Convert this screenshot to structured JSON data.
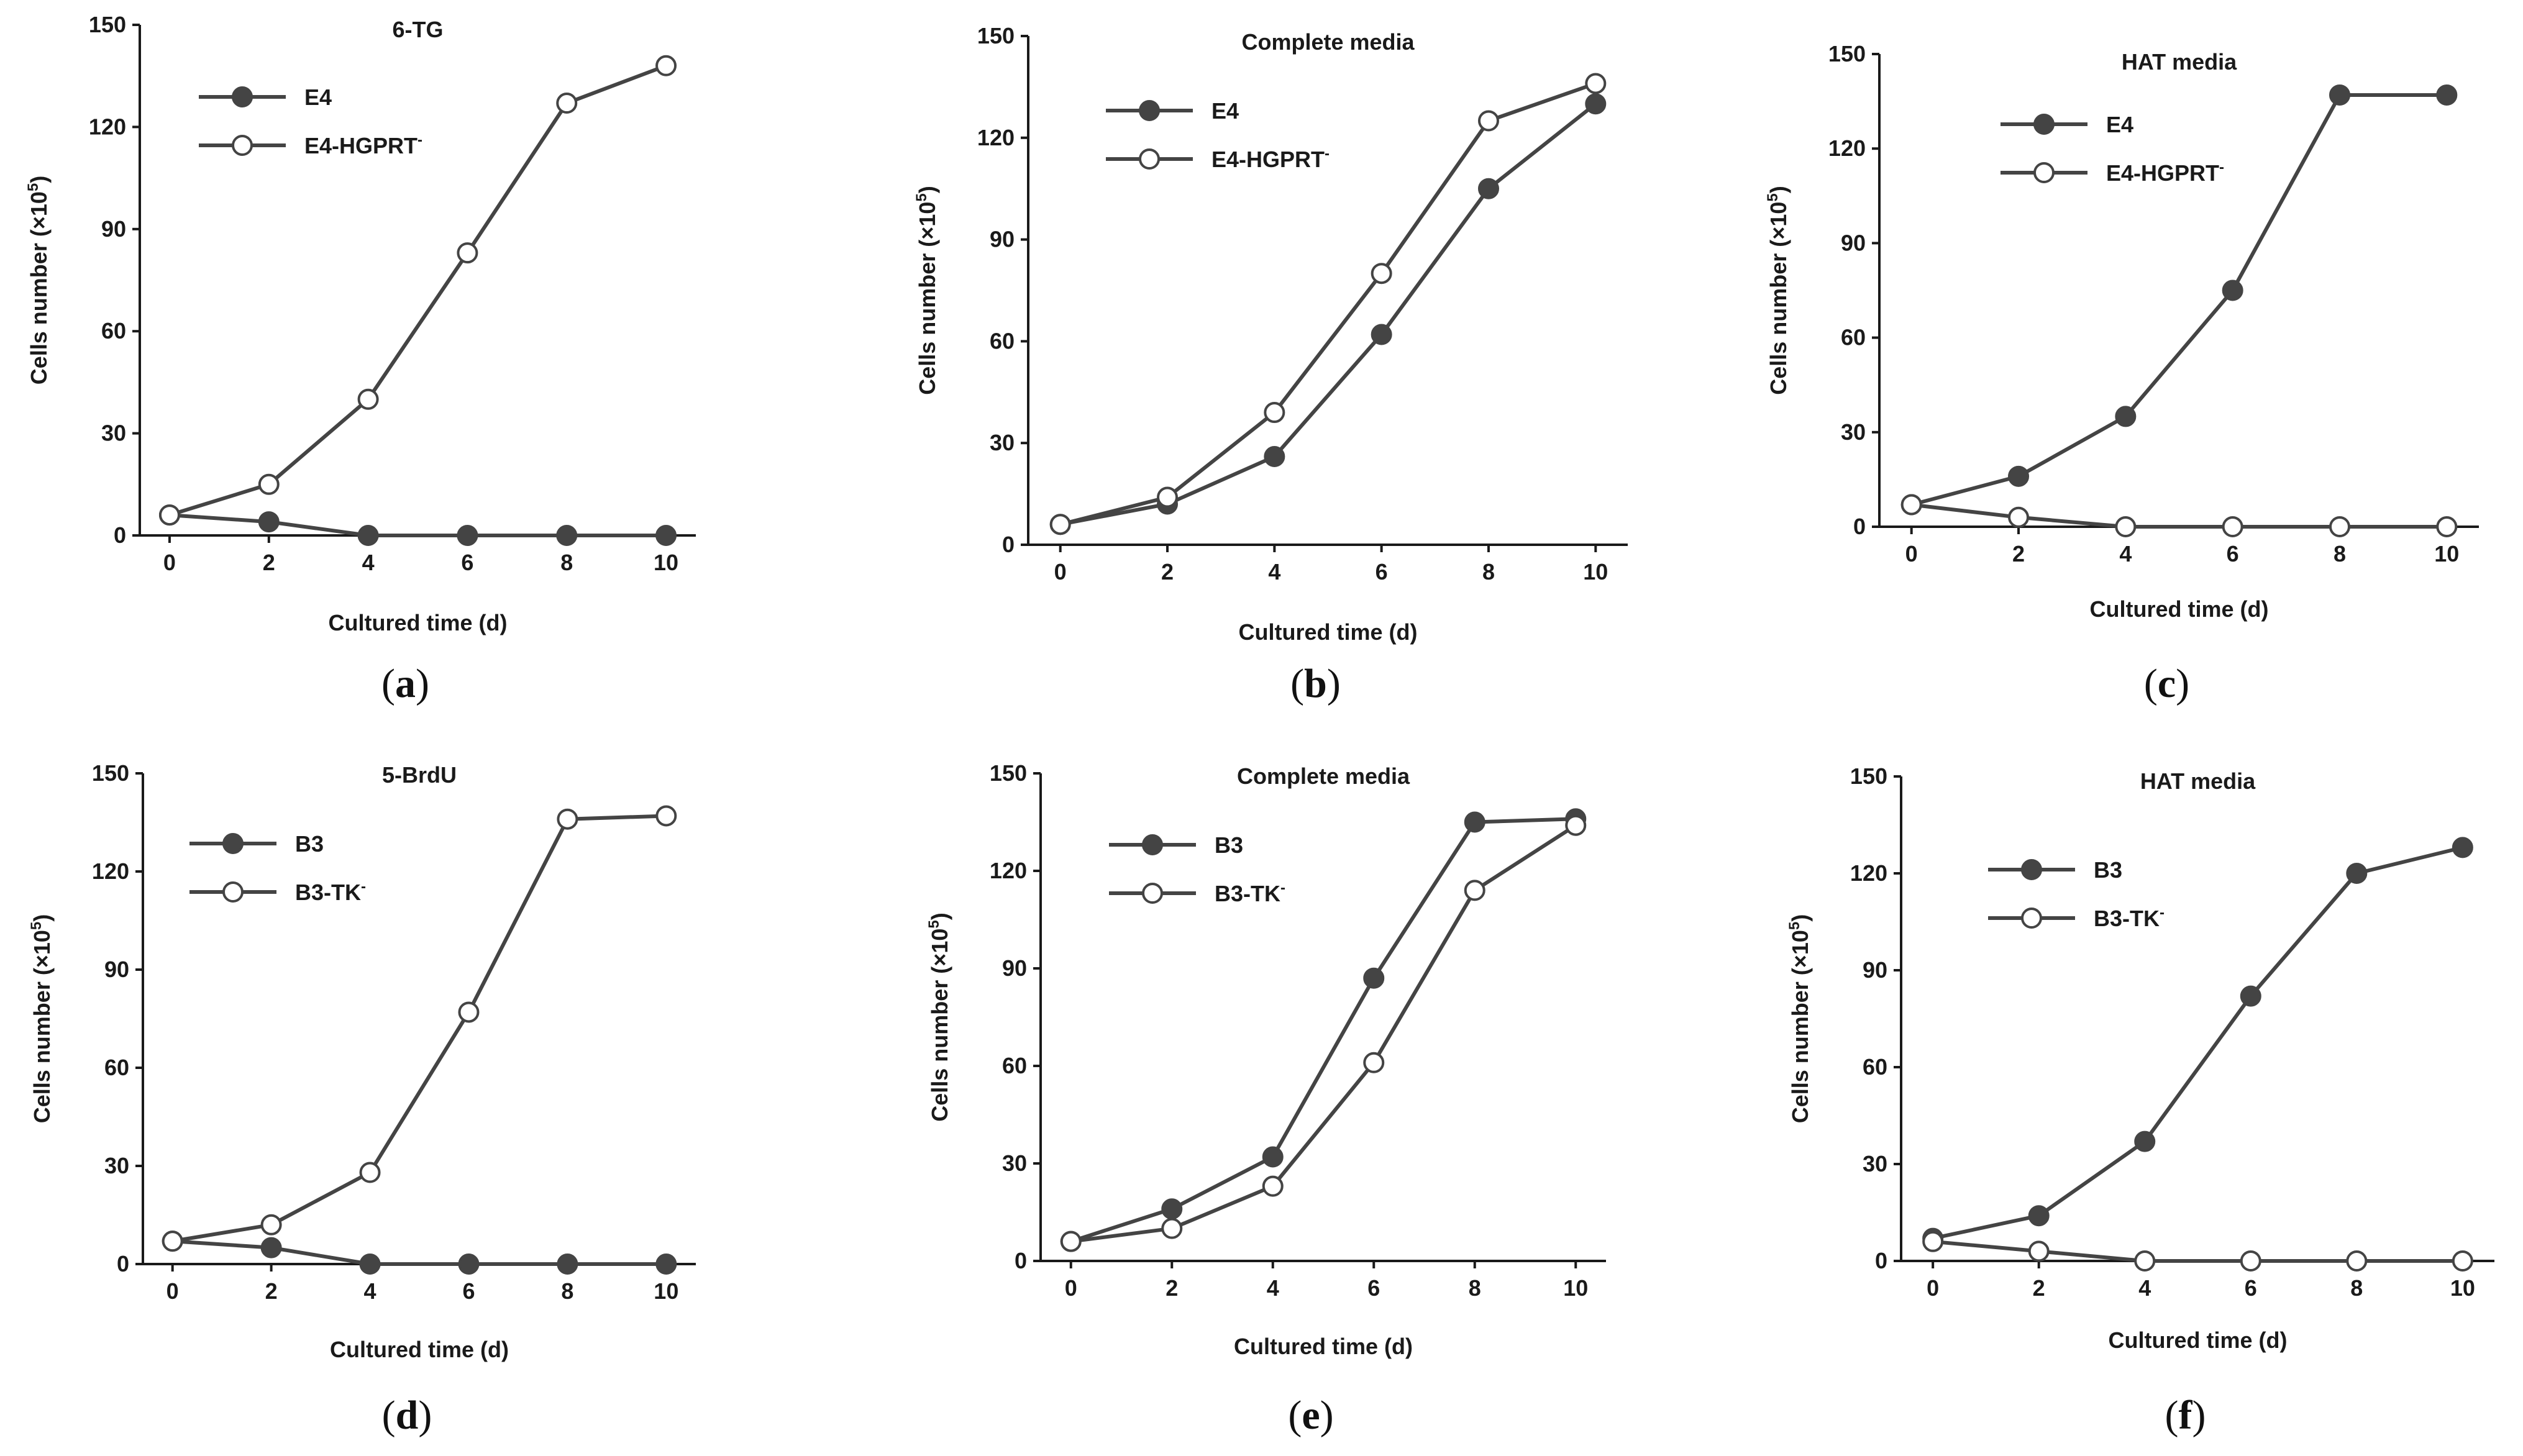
{
  "colors": {
    "line": "#444444",
    "filled_marker": "#444444",
    "open_marker_fill": "#ffffff",
    "text": "#1a1a1a"
  },
  "chart_data": [
    {
      "panel": "(a)",
      "panel_letter": "a",
      "type": "line",
      "title": "6-TG",
      "xlabel": "Cultured time (d)",
      "ylabel": "Cells number (×10",
      "ylabel_sup": "5",
      "ylabel_end": ")",
      "xlim": [
        -0.6,
        10.6
      ],
      "ylim": [
        0,
        150
      ],
      "xticks": [
        0,
        2,
        4,
        6,
        8,
        10
      ],
      "yticks": [
        0,
        30,
        60,
        90,
        120,
        150
      ],
      "legend_position": "top-left",
      "x": [
        0,
        2,
        4,
        6,
        8,
        10
      ],
      "series": [
        {
          "name": "E4",
          "marker": "filled",
          "values": [
            6,
            4,
            0,
            0,
            0,
            0
          ]
        },
        {
          "name": "E4-HGPRT",
          "name_sup": "-",
          "marker": "open",
          "values": [
            6,
            15,
            40,
            83,
            127,
            138
          ]
        }
      ]
    },
    {
      "panel": "(b)",
      "panel_letter": "b",
      "type": "line",
      "title": "Complete media",
      "xlabel": "Cultured time (d)",
      "ylabel": "Cells number (×10",
      "ylabel_sup": "5",
      "ylabel_end": ")",
      "xlim": [
        -0.6,
        10.6
      ],
      "ylim": [
        0,
        150
      ],
      "xticks": [
        0,
        2,
        4,
        6,
        8,
        10
      ],
      "yticks": [
        0,
        30,
        60,
        90,
        120,
        150
      ],
      "legend_position": "top-left",
      "x": [
        0,
        2,
        4,
        6,
        8,
        10
      ],
      "series": [
        {
          "name": "E4",
          "marker": "filled",
          "values": [
            6,
            12,
            26,
            62,
            105,
            130
          ]
        },
        {
          "name": "E4-HGPRT",
          "name_sup": "-",
          "marker": "open",
          "values": [
            6,
            14,
            39,
            80,
            125,
            136
          ]
        }
      ]
    },
    {
      "panel": "(c)",
      "panel_letter": "c",
      "type": "line",
      "title": "HAT media",
      "xlabel": "Cultured time (d)",
      "ylabel": "Cells number (×10",
      "ylabel_sup": "5",
      "ylabel_end": ")",
      "xlim": [
        -0.6,
        10.6
      ],
      "ylim": [
        0,
        150
      ],
      "xticks": [
        0,
        2,
        4,
        6,
        8,
        10
      ],
      "yticks": [
        0,
        30,
        60,
        90,
        120,
        150
      ],
      "legend_position": "top-left",
      "x": [
        0,
        2,
        4,
        6,
        8,
        10
      ],
      "series": [
        {
          "name": "E4",
          "marker": "filled",
          "values": [
            7,
            16,
            35,
            75,
            137,
            137
          ]
        },
        {
          "name": "E4-HGPRT",
          "name_sup": "-",
          "marker": "open",
          "values": [
            7,
            3,
            0,
            0,
            0,
            0
          ]
        }
      ]
    },
    {
      "panel": "(d)",
      "panel_letter": "d",
      "type": "line",
      "title": "5-BrdU",
      "xlabel": "Cultured time (d)",
      "ylabel": "Cells number (×10",
      "ylabel_sup": "5",
      "ylabel_end": ")",
      "xlim": [
        -0.6,
        10.6
      ],
      "ylim": [
        0,
        150
      ],
      "xticks": [
        0,
        2,
        4,
        6,
        8,
        10
      ],
      "yticks": [
        0,
        30,
        60,
        90,
        120,
        150
      ],
      "legend_position": "top-left",
      "x": [
        0,
        2,
        4,
        6,
        8,
        10
      ],
      "series": [
        {
          "name": "B3",
          "marker": "filled",
          "values": [
            7,
            5,
            0,
            0,
            0,
            0
          ]
        },
        {
          "name": "B3-TK",
          "name_sup": "-",
          "marker": "open",
          "values": [
            7,
            12,
            28,
            77,
            136,
            137
          ]
        }
      ]
    },
    {
      "panel": "(e)",
      "panel_letter": "e",
      "type": "line",
      "title": "Complete media",
      "xlabel": "Cultured time (d)",
      "ylabel": "Cells number (×10",
      "ylabel_sup": "5",
      "ylabel_end": ")",
      "xlim": [
        -0.6,
        10.6
      ],
      "ylim": [
        0,
        150
      ],
      "xticks": [
        0,
        2,
        4,
        6,
        8,
        10
      ],
      "yticks": [
        0,
        30,
        60,
        90,
        120,
        150
      ],
      "legend_position": "top-left",
      "x": [
        0,
        2,
        4,
        6,
        8,
        10
      ],
      "series": [
        {
          "name": "B3",
          "marker": "filled",
          "values": [
            6,
            16,
            32,
            87,
            135,
            136
          ]
        },
        {
          "name": "B3-TK",
          "name_sup": "-",
          "marker": "open",
          "values": [
            6,
            10,
            23,
            61,
            114,
            134
          ]
        }
      ]
    },
    {
      "panel": "(f)",
      "panel_letter": "f",
      "type": "line",
      "title": "HAT media",
      "xlabel": "Cultured time (d)",
      "ylabel": "Cells number (×10",
      "ylabel_sup": "5",
      "ylabel_end": ")",
      "xlim": [
        -0.6,
        10.6
      ],
      "ylim": [
        0,
        150
      ],
      "xticks": [
        0,
        2,
        4,
        6,
        8,
        10
      ],
      "yticks": [
        0,
        30,
        60,
        90,
        120,
        150
      ],
      "legend_position": "top-left",
      "x": [
        0,
        2,
        4,
        6,
        8,
        10
      ],
      "series": [
        {
          "name": "B3",
          "marker": "filled",
          "values": [
            7,
            14,
            37,
            82,
            120,
            128
          ]
        },
        {
          "name": "B3-TK",
          "name_sup": "-",
          "marker": "open",
          "values": [
            6,
            3,
            0,
            0,
            0,
            0
          ]
        }
      ]
    }
  ]
}
